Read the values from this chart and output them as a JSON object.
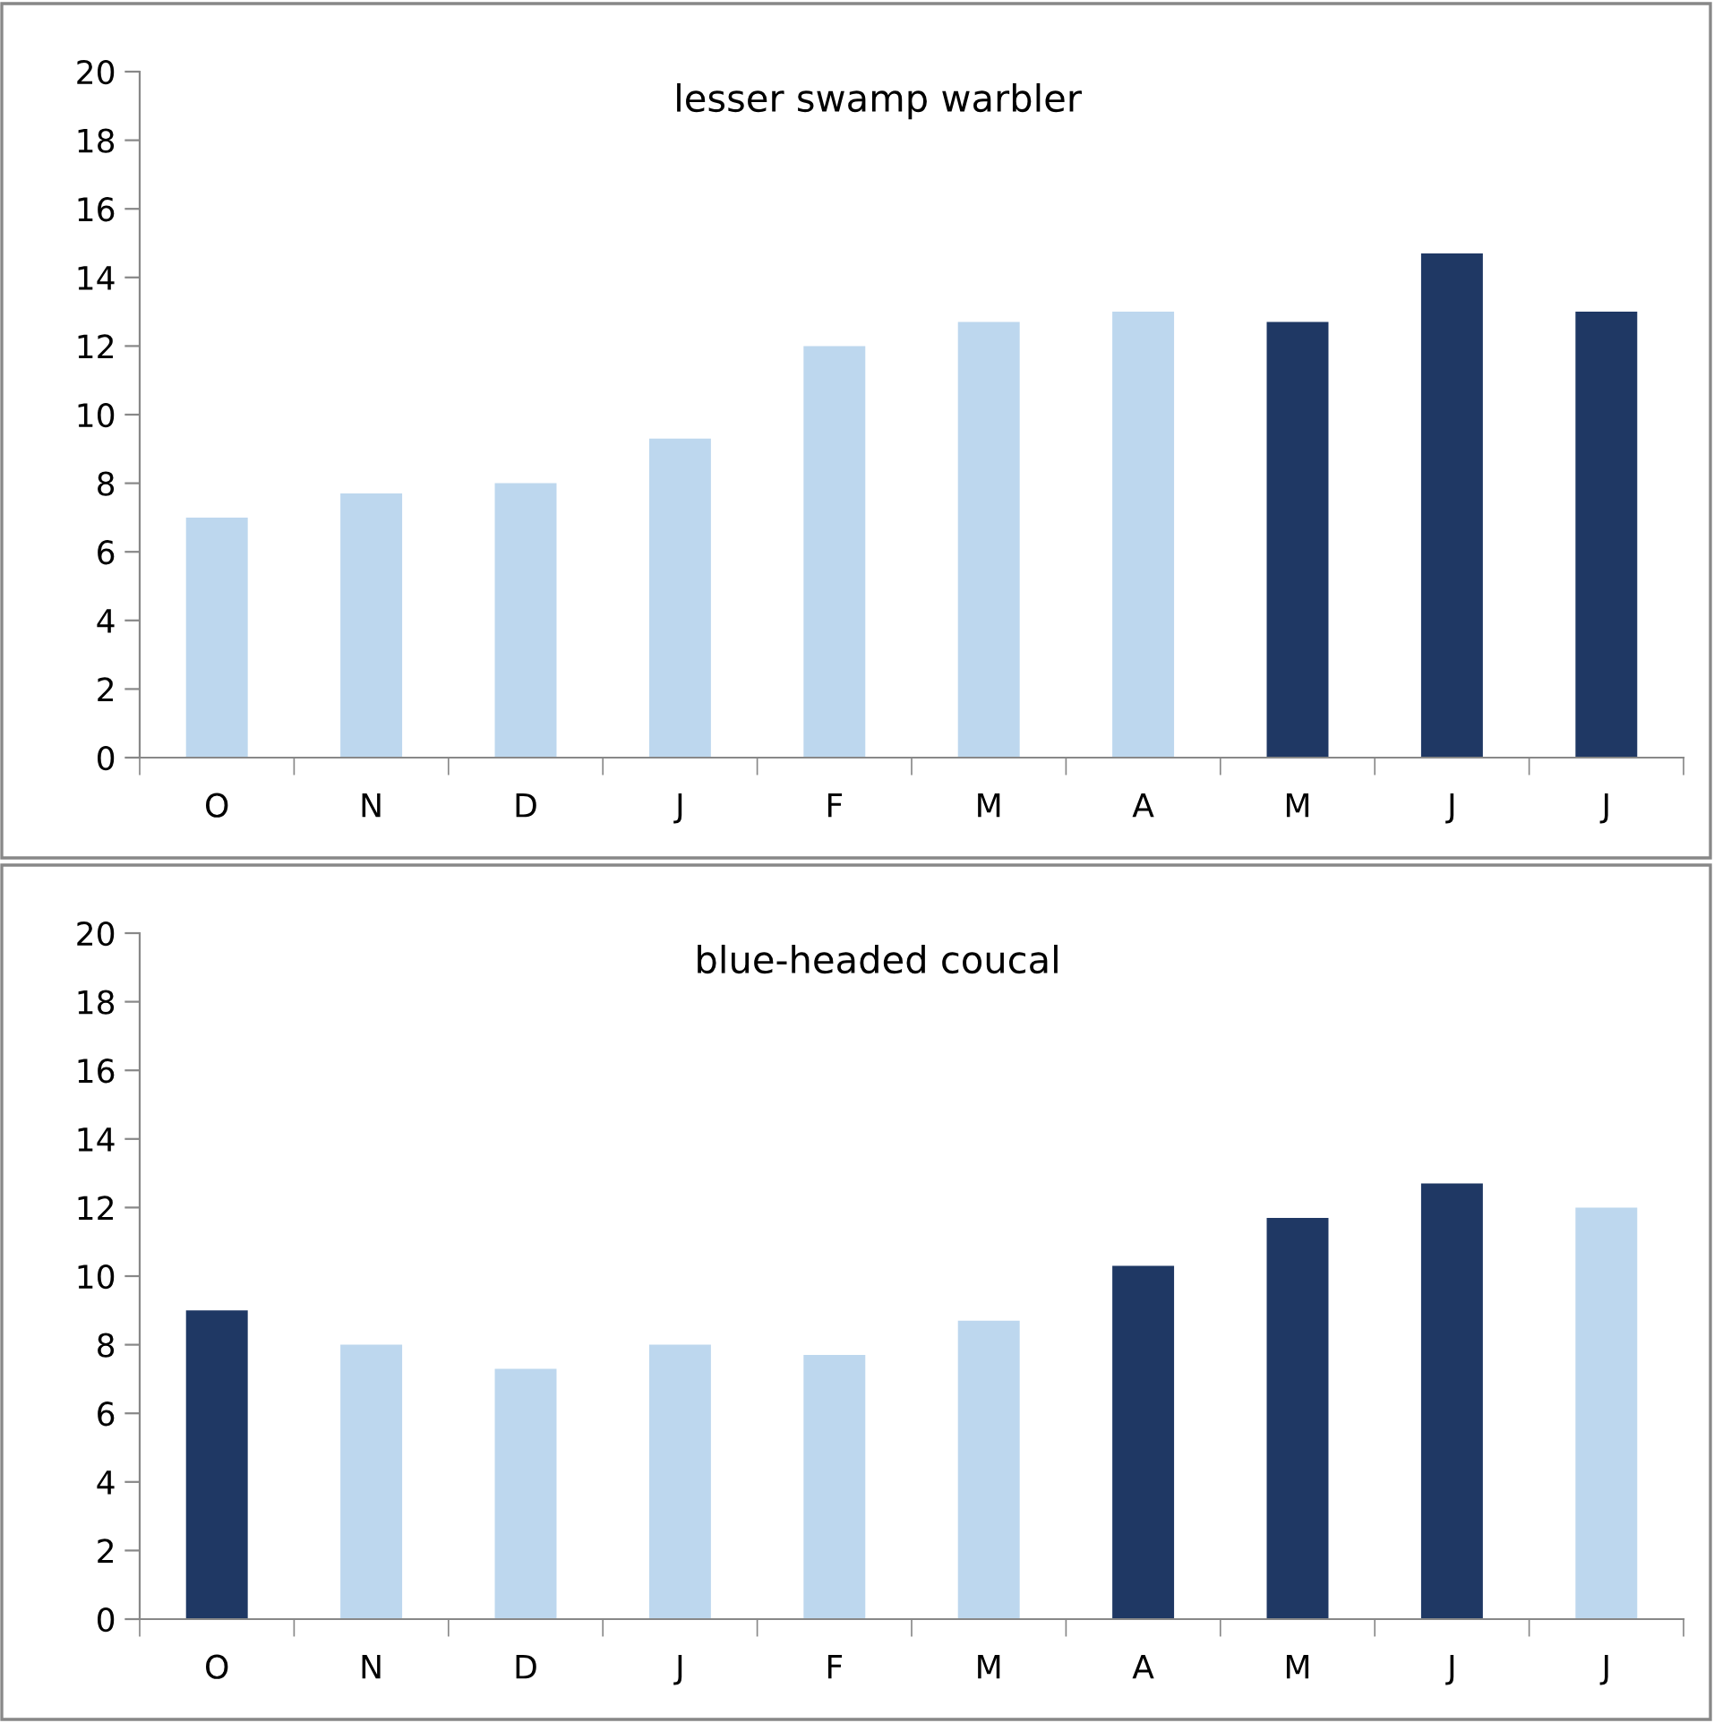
{
  "chart_data": [
    {
      "type": "bar",
      "title": "lesser swamp warbler",
      "categories": [
        "O",
        "N",
        "D",
        "J",
        "F",
        "M",
        "A",
        "M",
        "J",
        "J"
      ],
      "values": [
        7,
        7.7,
        8,
        9.3,
        12,
        12.7,
        13,
        12.7,
        14.7,
        13
      ],
      "colors": [
        "#bdd7ee",
        "#bdd7ee",
        "#bdd7ee",
        "#bdd7ee",
        "#bdd7ee",
        "#bdd7ee",
        "#bdd7ee",
        "#1f3864",
        "#1f3864",
        "#1f3864"
      ],
      "ylim": [
        0,
        20
      ],
      "yticks": [
        0,
        2,
        4,
        6,
        8,
        10,
        12,
        14,
        16,
        18,
        20
      ],
      "grid": false,
      "legend": false
    },
    {
      "type": "bar",
      "title": "blue-headed coucal",
      "categories": [
        "O",
        "N",
        "D",
        "J",
        "F",
        "M",
        "A",
        "M",
        "J",
        "J"
      ],
      "values": [
        9,
        8,
        7.3,
        8,
        7.7,
        8.7,
        10.3,
        11.7,
        12.7,
        12
      ],
      "colors": [
        "#1f3864",
        "#bdd7ee",
        "#bdd7ee",
        "#bdd7ee",
        "#bdd7ee",
        "#bdd7ee",
        "#1f3864",
        "#1f3864",
        "#1f3864",
        "#bdd7ee"
      ],
      "ylim": [
        0,
        20
      ],
      "yticks": [
        0,
        2,
        4,
        6,
        8,
        10,
        12,
        14,
        16,
        18,
        20
      ],
      "grid": false,
      "legend": false
    }
  ]
}
